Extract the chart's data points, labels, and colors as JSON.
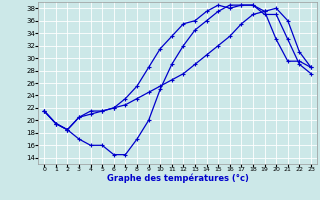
{
  "xlabel": "Graphe des températures (°c)",
  "bg_color": "#cce8e8",
  "line_color": "#0000cc",
  "xlim": [
    -0.5,
    23.5
  ],
  "ylim": [
    13,
    39
  ],
  "xticks": [
    0,
    1,
    2,
    3,
    4,
    5,
    6,
    7,
    8,
    9,
    10,
    11,
    12,
    13,
    14,
    15,
    16,
    17,
    18,
    19,
    20,
    21,
    22,
    23
  ],
  "yticks": [
    14,
    16,
    18,
    20,
    22,
    24,
    26,
    28,
    30,
    32,
    34,
    36,
    38
  ],
  "line1_x": [
    0,
    1,
    2,
    3,
    4,
    5,
    6,
    7,
    8,
    9,
    10,
    11,
    12,
    13,
    14,
    15,
    16,
    17,
    18,
    19,
    20,
    21,
    22,
    23
  ],
  "line1_y": [
    21.5,
    19.5,
    18.5,
    17.0,
    16.0,
    16.0,
    14.5,
    14.5,
    17.0,
    20.0,
    25.0,
    29.0,
    32.0,
    34.5,
    36.0,
    37.5,
    38.5,
    38.5,
    38.5,
    37.5,
    33.0,
    29.5,
    29.5,
    28.5
  ],
  "line2_x": [
    0,
    1,
    2,
    3,
    4,
    5,
    6,
    7,
    8,
    9,
    10,
    11,
    12,
    13,
    14,
    15,
    16,
    17,
    18,
    19,
    20,
    21,
    22,
    23
  ],
  "line2_y": [
    21.5,
    19.5,
    18.5,
    20.5,
    21.5,
    21.5,
    22.0,
    23.5,
    25.5,
    28.5,
    31.5,
    33.5,
    35.5,
    36.0,
    37.5,
    38.5,
    38.0,
    38.5,
    38.5,
    37.0,
    37.0,
    33.0,
    29.0,
    27.5
  ],
  "line3_x": [
    0,
    1,
    2,
    3,
    4,
    5,
    6,
    7,
    8,
    9,
    10,
    11,
    12,
    13,
    14,
    15,
    16,
    17,
    18,
    19,
    20,
    21,
    22,
    23
  ],
  "line3_y": [
    21.5,
    19.5,
    18.5,
    20.5,
    21.0,
    21.5,
    22.0,
    22.5,
    23.5,
    24.5,
    25.5,
    26.5,
    27.5,
    29.0,
    30.5,
    32.0,
    33.5,
    35.5,
    37.0,
    37.5,
    38.0,
    36.0,
    31.0,
    28.5
  ]
}
